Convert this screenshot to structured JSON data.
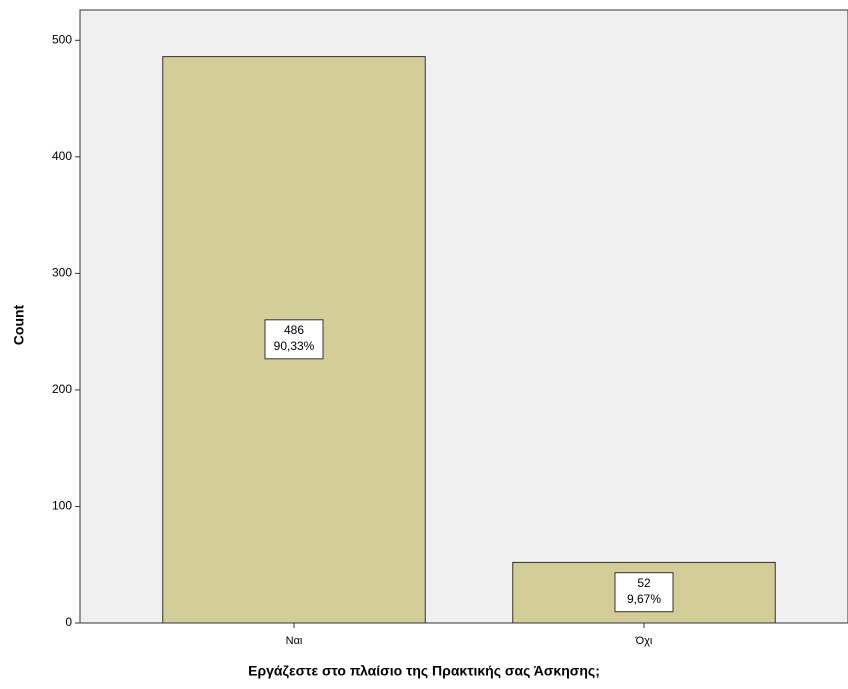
{
  "chart_data": {
    "type": "bar",
    "x_label": "Εργάζεστε στο πλαίσιο της Πρακτικής σας Άσκησης;",
    "y_label": "Count",
    "categories": [
      "Ναι",
      "Όχι"
    ],
    "values": [
      486,
      52
    ],
    "percentages": [
      90.33,
      9.67
    ],
    "percentage_labels": [
      "90,33%",
      "9,67%"
    ],
    "color": "#d3ce97",
    "ylim": [
      0,
      526
    ],
    "yticks": [
      0,
      100,
      200,
      300,
      400,
      500
    ]
  }
}
